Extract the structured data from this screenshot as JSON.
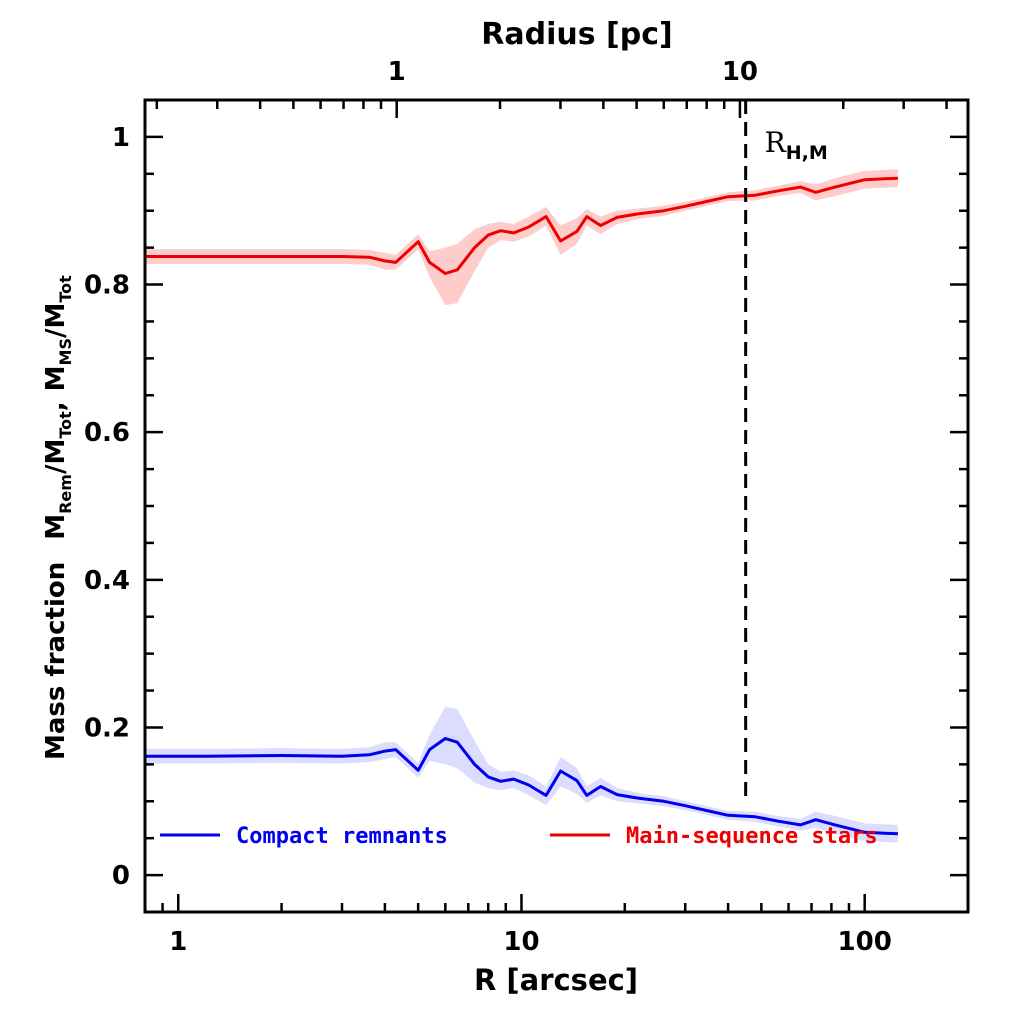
{
  "chart_data": {
    "type": "line",
    "xlabel": "R [arcsec]",
    "top_xlabel": "Radius [pc]",
    "ylabel_main": "Mass fraction",
    "ylabel_expr": {
      "m1": "M",
      "s1": "Rem",
      "slash1": "/M",
      "s2": "Tot",
      "comma": ",",
      "m2": "M",
      "s3": "MS",
      "slash2": "/M",
      "s4": "Tot"
    },
    "x_scale": "log",
    "xlim": [
      0.8,
      200
    ],
    "ylim": [
      -0.05,
      1.05
    ],
    "x_ticks": [
      "1",
      "10",
      "100"
    ],
    "x_tick_values": [
      1,
      10,
      100
    ],
    "y_ticks": [
      "0",
      "0.2",
      "0.4",
      "0.6",
      "0.8",
      "1"
    ],
    "y_tick_values": [
      0,
      0.2,
      0.4,
      0.6,
      0.8,
      1.0
    ],
    "top_x_ticks": [
      "1",
      "10"
    ],
    "top_x_tick_values_arcsec": [
      4.33,
      43.3
    ],
    "vline": {
      "x": 45,
      "label_main": "R",
      "label_sub": "H,M"
    },
    "legend_position": "bottom",
    "series": [
      {
        "name": "Compact remnants",
        "color": "#0000ee",
        "band_color": "#dcdcff",
        "x": [
          0.8,
          1.2,
          2.0,
          3.0,
          3.6,
          4.0,
          4.3,
          5.0,
          5.4,
          6.0,
          6.5,
          7.3,
          8.0,
          8.7,
          9.5,
          10.5,
          11.8,
          13.0,
          14.5,
          15.5,
          17.0,
          19.0,
          22.0,
          26.0,
          30.0,
          35.0,
          40.0,
          48.0,
          56.0,
          65.0,
          72.0,
          82.0,
          100.0,
          125.0
        ],
        "y": [
          0.161,
          0.161,
          0.162,
          0.161,
          0.163,
          0.168,
          0.17,
          0.142,
          0.17,
          0.185,
          0.18,
          0.15,
          0.133,
          0.127,
          0.13,
          0.122,
          0.108,
          0.141,
          0.128,
          0.108,
          0.12,
          0.109,
          0.104,
          0.1,
          0.094,
          0.087,
          0.081,
          0.079,
          0.073,
          0.068,
          0.075,
          0.068,
          0.058,
          0.056
        ],
        "lower": [
          0.151,
          0.151,
          0.152,
          0.151,
          0.153,
          0.157,
          0.16,
          0.132,
          0.155,
          0.15,
          0.145,
          0.125,
          0.118,
          0.115,
          0.118,
          0.108,
          0.095,
          0.12,
          0.11,
          0.098,
          0.108,
          0.1,
          0.097,
          0.093,
          0.088,
          0.081,
          0.075,
          0.072,
          0.066,
          0.06,
          0.064,
          0.056,
          0.046,
          0.044
        ],
        "upper": [
          0.171,
          0.171,
          0.172,
          0.171,
          0.173,
          0.18,
          0.18,
          0.152,
          0.19,
          0.228,
          0.225,
          0.182,
          0.15,
          0.14,
          0.142,
          0.135,
          0.12,
          0.16,
          0.145,
          0.12,
          0.132,
          0.118,
          0.111,
          0.107,
          0.1,
          0.093,
          0.087,
          0.086,
          0.08,
          0.076,
          0.086,
          0.08,
          0.07,
          0.068
        ]
      },
      {
        "name": "Main-sequence stars",
        "color": "#ee0000",
        "band_color": "#ffcccc",
        "x": [
          0.8,
          1.2,
          2.0,
          3.0,
          3.6,
          4.0,
          4.3,
          5.0,
          5.4,
          6.0,
          6.5,
          7.3,
          8.0,
          8.7,
          9.5,
          10.5,
          11.8,
          13.0,
          14.5,
          15.5,
          17.0,
          19.0,
          22.0,
          26.0,
          30.0,
          35.0,
          40.0,
          48.0,
          56.0,
          65.0,
          72.0,
          82.0,
          100.0,
          125.0
        ],
        "y": [
          0.838,
          0.838,
          0.838,
          0.838,
          0.837,
          0.832,
          0.83,
          0.858,
          0.83,
          0.815,
          0.82,
          0.85,
          0.867,
          0.873,
          0.87,
          0.878,
          0.892,
          0.859,
          0.872,
          0.892,
          0.88,
          0.891,
          0.896,
          0.9,
          0.906,
          0.913,
          0.919,
          0.921,
          0.927,
          0.932,
          0.925,
          0.932,
          0.942,
          0.944
        ],
        "lower": [
          0.828,
          0.828,
          0.828,
          0.828,
          0.827,
          0.82,
          0.82,
          0.848,
          0.81,
          0.772,
          0.775,
          0.818,
          0.85,
          0.86,
          0.858,
          0.865,
          0.88,
          0.84,
          0.855,
          0.88,
          0.868,
          0.882,
          0.889,
          0.893,
          0.9,
          0.907,
          0.913,
          0.914,
          0.92,
          0.924,
          0.914,
          0.92,
          0.93,
          0.932
        ],
        "upper": [
          0.848,
          0.848,
          0.848,
          0.848,
          0.847,
          0.843,
          0.84,
          0.868,
          0.845,
          0.85,
          0.855,
          0.875,
          0.882,
          0.885,
          0.882,
          0.892,
          0.905,
          0.88,
          0.89,
          0.902,
          0.892,
          0.9,
          0.903,
          0.907,
          0.912,
          0.919,
          0.925,
          0.928,
          0.934,
          0.94,
          0.936,
          0.944,
          0.954,
          0.956
        ]
      }
    ]
  }
}
